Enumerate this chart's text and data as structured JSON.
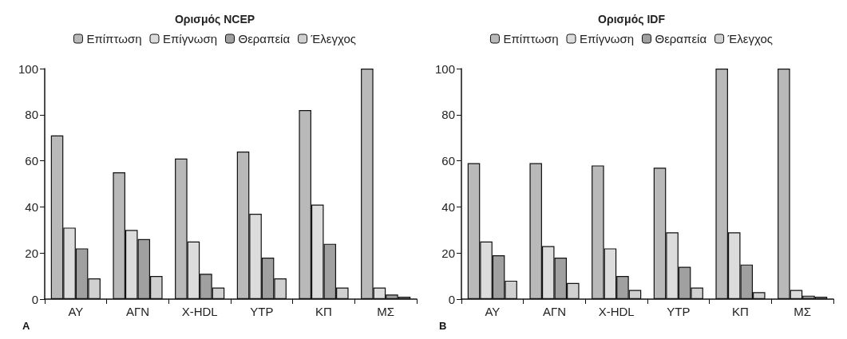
{
  "chart_data": [
    {
      "type": "bar",
      "title": "Ορισμός NCEP",
      "categories": [
        "ΑΥ",
        "ΑΓΝ",
        "Χ-HDL",
        "ΥΤΡ",
        "ΚΠ",
        "ΜΣ"
      ],
      "series": [
        {
          "name": "Επίπτωση",
          "color": "#b9b9b9",
          "values": [
            71,
            55,
            61,
            64,
            82,
            100
          ]
        },
        {
          "name": "Επίγνωση",
          "color": "#dcdcdc",
          "values": [
            31,
            30,
            25,
            37,
            41,
            5
          ]
        },
        {
          "name": "Θεραπεία",
          "color": "#a0a0a0",
          "values": [
            22,
            26,
            11,
            18,
            24,
            2
          ]
        },
        {
          "name": "Έλεγχος",
          "color": "#d0d0d0",
          "values": [
            9,
            10,
            5,
            9,
            5,
            1
          ]
        }
      ],
      "ylim": [
        0,
        100
      ],
      "yticks": [
        0,
        20,
        40,
        60,
        80,
        100
      ],
      "grid": false,
      "legend": "top",
      "annotations": [
        "A"
      ]
    },
    {
      "type": "bar",
      "title": "Ορισμός IDF",
      "categories": [
        "ΑΥ",
        "ΑΓΝ",
        "Χ-HDL",
        "ΥΤΡ",
        "ΚΠ",
        "ΜΣ"
      ],
      "series": [
        {
          "name": "Επίπτωση",
          "color": "#b9b9b9",
          "values": [
            59,
            59,
            58,
            57,
            100,
            100
          ]
        },
        {
          "name": "Επίγνωση",
          "color": "#dcdcdc",
          "values": [
            25,
            23,
            22,
            29,
            29,
            4
          ]
        },
        {
          "name": "Θεραπεία",
          "color": "#a0a0a0",
          "values": [
            19,
            18,
            10,
            14,
            15,
            1.5
          ]
        },
        {
          "name": "Έλεγχος",
          "color": "#d0d0d0",
          "values": [
            8,
            7,
            4,
            5,
            3,
            1
          ]
        }
      ],
      "ylim": [
        0,
        100
      ],
      "yticks": [
        0,
        20,
        40,
        60,
        80,
        100
      ],
      "grid": false,
      "legend": "top",
      "annotations": [
        "B"
      ]
    }
  ]
}
